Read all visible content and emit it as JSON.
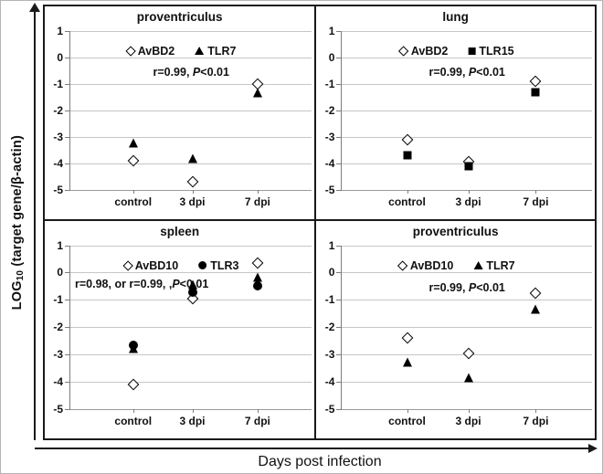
{
  "figure": {
    "ylabel_main": "LOG",
    "ylabel_sub": "10",
    "ylabel_rest": " (target gene/β-actin)",
    "xlabel": "Days post infection"
  },
  "colors": {
    "marker": "#000000",
    "gridline": "#c6c6c6",
    "axis": "#7d7d7d",
    "frame": "#1a1a1a"
  },
  "chart_data": [
    {
      "type": "scatter",
      "title": "proventriculus",
      "categories": [
        "control",
        "3 dpi",
        "7 dpi"
      ],
      "ylim": [
        1,
        -5
      ],
      "yticks": [
        1,
        0,
        -1,
        -2,
        -3,
        -4,
        -5
      ],
      "grid": true,
      "legend_position": "top-center",
      "legend": [
        {
          "marker": "diamond-open",
          "label": "AvBD2"
        },
        {
          "marker": "triangle-filled",
          "label": "TLR7"
        }
      ],
      "annotation": {
        "pre": "r=0.99, ",
        "italic": "P",
        "post": "<0.01",
        "align": "center"
      },
      "series": [
        {
          "name": "AvBD2",
          "marker": "diamond-open",
          "values": [
            -3.9,
            -4.7,
            -1.0
          ]
        },
        {
          "name": "TLR7",
          "marker": "triangle-filled",
          "values": [
            -3.25,
            -3.85,
            -1.35
          ]
        }
      ]
    },
    {
      "type": "scatter",
      "title": "lung",
      "categories": [
        "control",
        "3 dpi",
        "7 dpi"
      ],
      "ylim": [
        1,
        -5
      ],
      "yticks": [
        1,
        0,
        -1,
        -2,
        -3,
        -4,
        -5
      ],
      "grid": true,
      "legend_position": "top-center",
      "legend": [
        {
          "marker": "diamond-open",
          "label": "AvBD2"
        },
        {
          "marker": "square-filled",
          "label": "TLR15"
        }
      ],
      "annotation": {
        "pre": "r=0.99, ",
        "italic": "P",
        "post": "<0.01",
        "align": "center"
      },
      "series": [
        {
          "name": "AvBD2",
          "marker": "diamond-open",
          "values": [
            -3.1,
            -3.95,
            -0.9
          ]
        },
        {
          "name": "TLR15",
          "marker": "square-filled",
          "values": [
            -3.7,
            -4.1,
            -1.3
          ]
        }
      ]
    },
    {
      "type": "scatter",
      "title": "spleen",
      "categories": [
        "control",
        "3 dpi",
        "7 dpi"
      ],
      "ylim": [
        1,
        -5
      ],
      "yticks": [
        1,
        0,
        -1,
        -2,
        -3,
        -4,
        -5
      ],
      "grid": true,
      "legend_position": "top-center",
      "legend": [
        {
          "marker": "diamond-open",
          "label": "AvBD10"
        },
        {
          "marker": "circle-filled",
          "label": "TLR3"
        }
      ],
      "annotation": {
        "pre": "r=0.98, or r=0.99, ,",
        "italic": "P",
        "post": "<0.01",
        "align": "left"
      },
      "series": [
        {
          "name": "AvBD10",
          "marker": "diamond-open",
          "values": [
            -4.1,
            -0.95,
            0.35
          ]
        },
        {
          "name": "",
          "marker": "triangle-filled",
          "values": [
            -2.8,
            -0.45,
            -0.2
          ]
        },
        {
          "name": "TLR3",
          "marker": "circle-filled",
          "values": [
            -2.65,
            -0.72,
            -0.5
          ]
        }
      ]
    },
    {
      "type": "scatter",
      "title": "proventriculus",
      "categories": [
        "control",
        "3 dpi",
        "7 dpi"
      ],
      "ylim": [
        1,
        -5
      ],
      "yticks": [
        1,
        0,
        -1,
        -2,
        -3,
        -4,
        -5
      ],
      "grid": true,
      "legend_position": "top-center",
      "legend": [
        {
          "marker": "diamond-open",
          "label": "AvBD10"
        },
        {
          "marker": "triangle-filled",
          "label": "TLR7"
        }
      ],
      "annotation": {
        "pre": "r=0.99, ",
        "italic": "P",
        "post": "<0.01",
        "align": "center"
      },
      "series": [
        {
          "name": "AvBD10",
          "marker": "diamond-open",
          "values": [
            -2.4,
            -2.95,
            -0.75
          ]
        },
        {
          "name": "TLR7",
          "marker": "triangle-filled",
          "values": [
            -3.3,
            -3.85,
            -1.35
          ]
        }
      ]
    }
  ]
}
